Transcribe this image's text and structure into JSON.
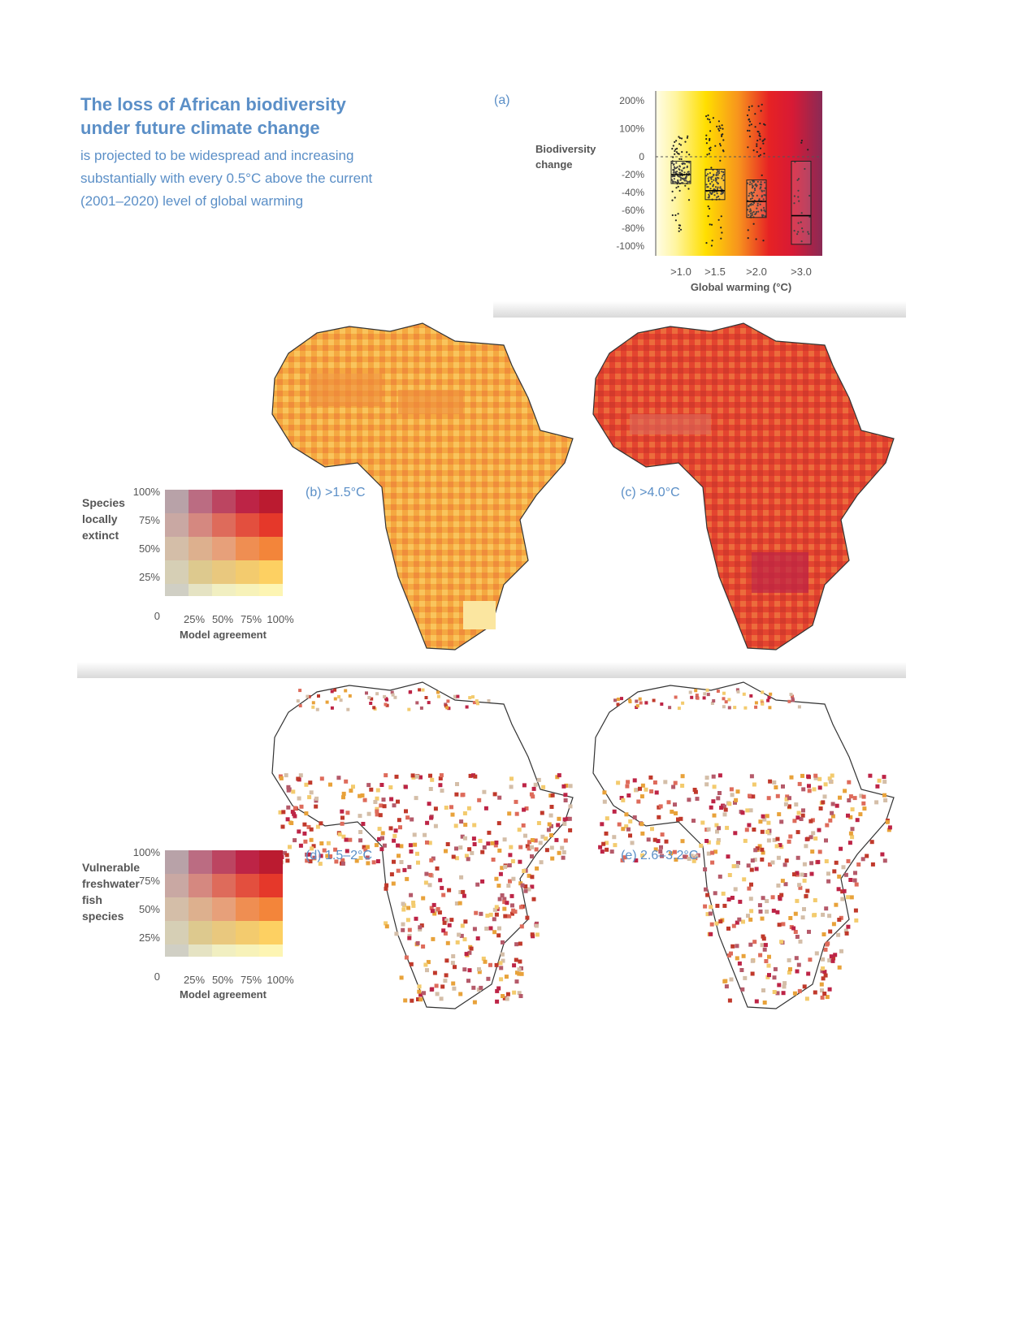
{
  "header": {
    "title": "The loss of African biodiversity under future climate change",
    "subtitle": "is projected to be widespread and increasing substantially with every 0.5°C above the current (2001–2020) level of global warming"
  },
  "chart_data": [
    {
      "panel": "(a)",
      "type": "box",
      "ylabel": "Biodiversity change",
      "xlabel": "Global warming (°C)",
      "categories": [
        ">1.0",
        ">1.5",
        ">2.0",
        ">3.0"
      ],
      "y_ticks": [
        "200%",
        "100%",
        "0",
        "-20%",
        "-40%",
        "-60%",
        "-80%",
        "-100%"
      ],
      "boxes": [
        {
          "category": ">1.0",
          "q1": -30,
          "median": -20,
          "q3": -5,
          "whisker_low": -95,
          "whisker_high": 80
        },
        {
          "category": ">1.5",
          "q1": -48,
          "median": -38,
          "q3": -14,
          "whisker_low": -100,
          "whisker_high": 150
        },
        {
          "category": ">2.0",
          "q1": -68,
          "median": -50,
          "q3": -26,
          "whisker_low": -100,
          "whisker_high": 190
        },
        {
          "category": ">3.0",
          "q1": -98,
          "median": -66,
          "q3": -5,
          "whisker_low": -100,
          "whisker_high": 60
        }
      ],
      "background_gradient": [
        "#fffbe0",
        "#ffe100",
        "#f7941d",
        "#e4202b",
        "#8b2a52"
      ]
    },
    {
      "panel": "(b) >1.5°C",
      "type": "heatmap",
      "map": "Africa",
      "dominant_colors": [
        "#f4a43a",
        "#f9c35b",
        "#ef8c3c"
      ]
    },
    {
      "panel": "(c) >4.0°C",
      "type": "heatmap",
      "map": "Africa",
      "dominant_colors": [
        "#e4442f",
        "#d53a2f",
        "#ec6c3c"
      ]
    },
    {
      "panel": "(d) 1.5–2°C",
      "type": "heatmap",
      "map": "Africa",
      "dominant_colors": [
        "#c0392b",
        "#e8a23a",
        "#b55a6a"
      ]
    },
    {
      "panel": "(e) 2.6–3.2°C",
      "type": "heatmap",
      "map": "Africa",
      "dominant_colors": [
        "#c0392b",
        "#e8a23a",
        "#b55a6a"
      ]
    }
  ],
  "legend_top": {
    "title": "Species locally extinct",
    "y_ticks": [
      "100%",
      "75%",
      "50%",
      "25%",
      "0"
    ],
    "x_ticks": [
      "25%",
      "50%",
      "75%",
      "100%"
    ],
    "xlabel": "Model agreement"
  },
  "legend_bottom": {
    "title": "Vulnerable freshwater fish species",
    "y_ticks": [
      "100%",
      "75%",
      "50%",
      "25%",
      "0"
    ],
    "x_ticks": [
      "25%",
      "50%",
      "75%",
      "100%"
    ],
    "xlabel": "Model agreement"
  },
  "colors": {
    "grid": [
      [
        "#b8a2a8",
        "#bb6c82",
        "#bc4561",
        "#bd2446",
        "#bb1b30"
      ],
      [
        "#c9a8a3",
        "#d58880",
        "#de6b5b",
        "#e34f3e",
        "#e5382a"
      ],
      [
        "#d4bea8",
        "#ddb08e",
        "#e7a07a",
        "#ef8e52",
        "#f3853a"
      ],
      [
        "#d6cfb5",
        "#ddc98e",
        "#e9c87e",
        "#f3cb6e",
        "#fdd062"
      ],
      [
        "#d0cfc4",
        "#e5e3c3",
        "#f1efc1",
        "#f7f2b9",
        "#fdf5b3"
      ]
    ]
  }
}
